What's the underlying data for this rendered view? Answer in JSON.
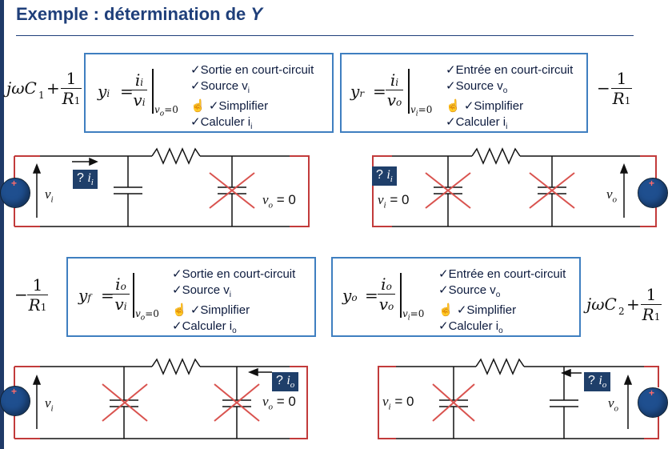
{
  "title": {
    "prefix": "Exemple : détermination de ",
    "var": "Y"
  },
  "steps": {
    "yi": [
      "✓Sortie en court-circuit",
      "✓Source v",
      "✓Simplifier",
      "✓Calculer i"
    ],
    "yr": [
      "✓Entrée en court-circuit",
      "✓Source v",
      "✓Simplifier",
      "✓Calculer i"
    ],
    "yf": [
      "✓Sortie en court-circuit",
      "✓Source v",
      "✓Simplifier",
      "✓Calculer i"
    ],
    "yo": [
      "✓Entrée en court-circuit",
      "✓Source v",
      "✓Simplifier",
      "✓Calculer i"
    ]
  },
  "step_subs": {
    "yi": [
      "i",
      "i"
    ],
    "yr": [
      "o",
      "i"
    ],
    "yf": [
      "i",
      "o"
    ],
    "yo": [
      "o",
      "o"
    ]
  },
  "formulas": {
    "yi_lhs": "y",
    "yi_sub": "i",
    "yi_num": "i",
    "yi_den": "v",
    "yi_cond": "v",
    "yr_lhs": "y",
    "yr_sub": "r",
    "yf_lhs": "y",
    "yf_sub": "f",
    "yo_lhs": "y",
    "yo_sub": "o",
    "cond_zero": "=0"
  },
  "results": {
    "yi": {
      "pre": "jωC",
      "sub": "1",
      "plus": "+",
      "num": "1",
      "den": "R",
      "den_sub": "1"
    },
    "yr": {
      "sign": "−",
      "num": "1",
      "den": "R",
      "den_sub": "1"
    },
    "yf": {
      "sign": "−",
      "num": "1",
      "den": "R",
      "den_sub": "1"
    },
    "yo": {
      "pre": "jωC",
      "sub": "2",
      "plus": "+",
      "num": "1",
      "den": "R",
      "den_sub": "1"
    }
  },
  "circuit_labels": {
    "q": "? ",
    "vi": "v",
    "vo": "v",
    "eq_zero": " = 0"
  },
  "colors": {
    "accent": "#1f3f7a",
    "box_border": "#3f7fc0",
    "wire_red": "#c23b3b",
    "cross": "#d9534f",
    "nav_bg": "#1f3f6a"
  }
}
